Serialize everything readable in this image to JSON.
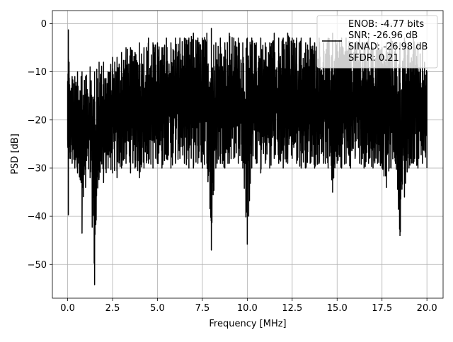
{
  "chart_data": {
    "type": "line",
    "title": "",
    "xlabel": "Frequency [MHz]",
    "ylabel": "PSD [dB]",
    "xlim": [
      -0.85,
      20.9
    ],
    "ylim": [
      -57.0,
      2.7
    ],
    "xticks": [
      0.0,
      2.5,
      5.0,
      7.5,
      10.0,
      12.5,
      15.0,
      17.5,
      20.0
    ],
    "xtick_labels": [
      "0.0",
      "2.5",
      "5.0",
      "7.5",
      "10.0",
      "12.5",
      "15.0",
      "17.5",
      "20.0"
    ],
    "yticks": [
      0,
      -10,
      -20,
      -30,
      -40,
      -50
    ],
    "ytick_labels": [
      "0",
      "−10",
      "−20",
      "−30",
      "−40",
      "−50"
    ],
    "grid": true,
    "legend_position": "top-right",
    "legend_lines": [
      "ENOB: -4.77 bits",
      "SNR: -26.96 dB",
      "SINAD: -26.98 dB",
      "SFDR: 0.21"
    ],
    "series": [
      {
        "color": "#000000",
        "x": [
          0.0,
          0.04,
          0.08,
          0.15,
          0.25,
          0.4,
          0.55,
          0.75,
          0.8,
          1.0,
          1.25,
          1.5,
          1.75,
          2.0,
          2.25,
          2.5,
          2.75,
          3.0,
          3.25,
          3.5,
          3.75,
          4.0,
          4.25,
          4.5,
          4.75,
          5.0,
          5.25,
          5.5,
          5.75,
          6.0,
          6.25,
          6.5,
          6.75,
          7.0,
          7.25,
          7.5,
          7.75,
          8.0,
          8.25,
          8.5,
          8.75,
          9.0,
          9.25,
          9.5,
          9.75,
          10.0,
          10.25,
          10.5,
          10.75,
          11.0,
          11.25,
          11.5,
          11.75,
          12.0,
          12.25,
          12.5,
          12.75,
          13.0,
          13.25,
          13.5,
          13.75,
          14.0,
          14.25,
          14.5,
          14.75,
          15.0,
          15.25,
          15.5,
          15.75,
          16.0,
          16.25,
          16.5,
          16.75,
          17.0,
          17.25,
          17.5,
          17.75,
          18.0,
          18.25,
          18.5,
          18.75,
          19.0,
          19.25,
          19.5,
          19.75,
          20.0
        ],
        "y_high": [
          -12,
          -1.3,
          -8,
          -14,
          -11,
          -11,
          -10,
          -11,
          -10,
          -11,
          -9,
          -10,
          -8,
          -8,
          -10,
          -7,
          -7,
          -6,
          -5,
          -5,
          -6,
          -4,
          -5,
          -3,
          -4,
          -4,
          -5,
          -3,
          -4,
          -3,
          -3,
          -3,
          -3,
          -2,
          -3,
          -3,
          -2,
          -1,
          -4,
          -3,
          -4,
          -2,
          -3,
          -3,
          -4,
          -3,
          -3,
          -4,
          -3,
          -4,
          -4,
          -2,
          -3,
          -3,
          -2,
          -3,
          -3,
          -3,
          -4,
          -3,
          -4,
          -3,
          -4,
          -3,
          -2,
          -4,
          -3,
          -3,
          -4,
          -4,
          -3,
          -4,
          -3,
          -5,
          -4,
          -5,
          -4,
          -3,
          -4,
          -4,
          -3,
          -5,
          -3,
          -4,
          -5,
          -10
        ],
        "y_low": [
          -24,
          -39.7,
          -28,
          -28,
          -29,
          -30,
          -31,
          -33,
          -43.5,
          -34,
          -32,
          -54.2,
          -32,
          -33,
          -30,
          -31,
          -32,
          -30,
          -29,
          -31,
          -30,
          -32,
          -30,
          -29,
          -30,
          -29,
          -30,
          -28,
          -30,
          -29,
          -28,
          -29,
          -30,
          -30,
          -29,
          -30,
          -29,
          -47,
          -30,
          -29,
          -30,
          -29,
          -28,
          -29,
          -30,
          -45.8,
          -30,
          -29,
          -31,
          -29,
          -30,
          -28,
          -29,
          -30,
          -29,
          -28,
          -29,
          -30,
          -30,
          -29,
          -30,
          -29,
          -29,
          -30,
          -35,
          -29,
          -30,
          -29,
          -30,
          -28,
          -29,
          -30,
          -29,
          -30,
          -29,
          -30,
          -34,
          -30,
          -29,
          -44,
          -36,
          -30,
          -29,
          -30,
          -29,
          -30
        ]
      }
    ]
  }
}
